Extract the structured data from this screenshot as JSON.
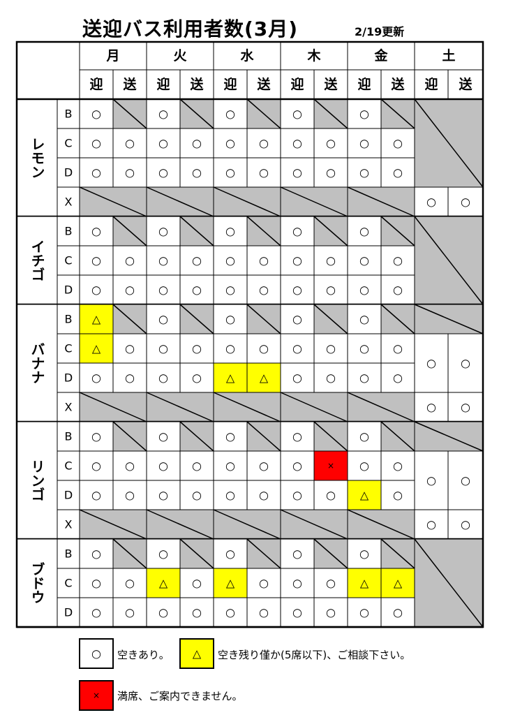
{
  "title": "送迎バス利用者数(3月)",
  "updated": "2/19更新",
  "days": [
    "月",
    "火",
    "水",
    "木",
    "金",
    "土"
  ],
  "directions": [
    "迎",
    "送"
  ],
  "colors": {
    "limited": "#ffff00",
    "full": "#ff0000",
    "na": "#c0c0c0",
    "available": "#ffffff"
  },
  "groups": [
    {
      "name": "レモン",
      "rows": [
        {
          "label": "B",
          "cells": [
            "○",
            "/",
            "○",
            "/",
            "○",
            "/",
            "○",
            "/",
            "○",
            "/"
          ]
        },
        {
          "label": "C",
          "cells": [
            "○",
            "○",
            "○",
            "○",
            "○",
            "○",
            "○",
            "○",
            "○",
            "○"
          ]
        },
        {
          "label": "D",
          "cells": [
            "○",
            "○",
            "○",
            "○",
            "○",
            "○",
            "○",
            "○",
            "○",
            "○"
          ]
        },
        {
          "label": "X",
          "cells": null
        }
      ],
      "saturday": [
        {
          "from": 0,
          "to": 2,
          "values": null
        },
        {
          "from": 3,
          "to": 3,
          "values": [
            "○",
            "○"
          ]
        }
      ]
    },
    {
      "name": "イチゴ",
      "rows": [
        {
          "label": "B",
          "cells": [
            "○",
            "/",
            "○",
            "/",
            "○",
            "/",
            "○",
            "/",
            "○",
            "/"
          ]
        },
        {
          "label": "C",
          "cells": [
            "○",
            "○",
            "○",
            "○",
            "○",
            "○",
            "○",
            "○",
            "○",
            "○"
          ]
        },
        {
          "label": "D",
          "cells": [
            "○",
            "○",
            "○",
            "○",
            "○",
            "○",
            "○",
            "○",
            "○",
            "○"
          ]
        }
      ],
      "saturday": [
        {
          "from": 0,
          "to": 2,
          "values": null
        }
      ]
    },
    {
      "name": "バナナ",
      "rows": [
        {
          "label": "B",
          "cells": [
            "△",
            "/",
            "○",
            "/",
            "○",
            "/",
            "○",
            "/",
            "○",
            "/"
          ]
        },
        {
          "label": "C",
          "cells": [
            "△",
            "○",
            "○",
            "○",
            "○",
            "○",
            "○",
            "○",
            "○",
            "○"
          ]
        },
        {
          "label": "D",
          "cells": [
            "○",
            "○",
            "○",
            "○",
            "△",
            "△",
            "○",
            "○",
            "○",
            "○"
          ]
        },
        {
          "label": "X",
          "cells": null
        }
      ],
      "saturday": [
        {
          "from": 0,
          "to": 0,
          "values": null
        },
        {
          "from": 1,
          "to": 2,
          "values": [
            "○",
            "○"
          ]
        },
        {
          "from": 3,
          "to": 3,
          "values": [
            "○",
            "○"
          ]
        }
      ]
    },
    {
      "name": "リンゴ",
      "rows": [
        {
          "label": "B",
          "cells": [
            "○",
            "/",
            "○",
            "/",
            "○",
            "/",
            "○",
            "/",
            "○",
            "/"
          ]
        },
        {
          "label": "C",
          "cells": [
            "○",
            "○",
            "○",
            "○",
            "○",
            "○",
            "○",
            "×",
            "○",
            "○"
          ]
        },
        {
          "label": "D",
          "cells": [
            "○",
            "○",
            "○",
            "○",
            "○",
            "○",
            "○",
            "○",
            "△",
            "○"
          ]
        },
        {
          "label": "X",
          "cells": null
        }
      ],
      "saturday": [
        {
          "from": 0,
          "to": 0,
          "values": null
        },
        {
          "from": 1,
          "to": 2,
          "values": [
            "○",
            "○"
          ]
        },
        {
          "from": 3,
          "to": 3,
          "values": [
            "○",
            "○"
          ]
        }
      ]
    },
    {
      "name": "ブドウ",
      "rows": [
        {
          "label": "B",
          "cells": [
            "○",
            "/",
            "○",
            "/",
            "○",
            "/",
            "○",
            "/",
            "○",
            "/"
          ]
        },
        {
          "label": "C",
          "cells": [
            "○",
            "○",
            "△",
            "○",
            "△",
            "○",
            "○",
            "○",
            "△",
            "△"
          ]
        },
        {
          "label": "D",
          "cells": [
            "○",
            "○",
            "○",
            "○",
            "○",
            "○",
            "○",
            "○",
            "○",
            "○"
          ]
        }
      ],
      "saturday": [
        {
          "from": 0,
          "to": 2,
          "values": null
        }
      ]
    }
  ],
  "legend": [
    {
      "symbol": "○",
      "text": "空きあり。",
      "color": "#ffffff"
    },
    {
      "symbol": "△",
      "text": "空き残り僅か(5席以下)、ご相談下さい。",
      "color": "#ffff00"
    },
    {
      "symbol": "×",
      "text": "満席、ご案内できません。",
      "color": "#ff0000"
    }
  ]
}
